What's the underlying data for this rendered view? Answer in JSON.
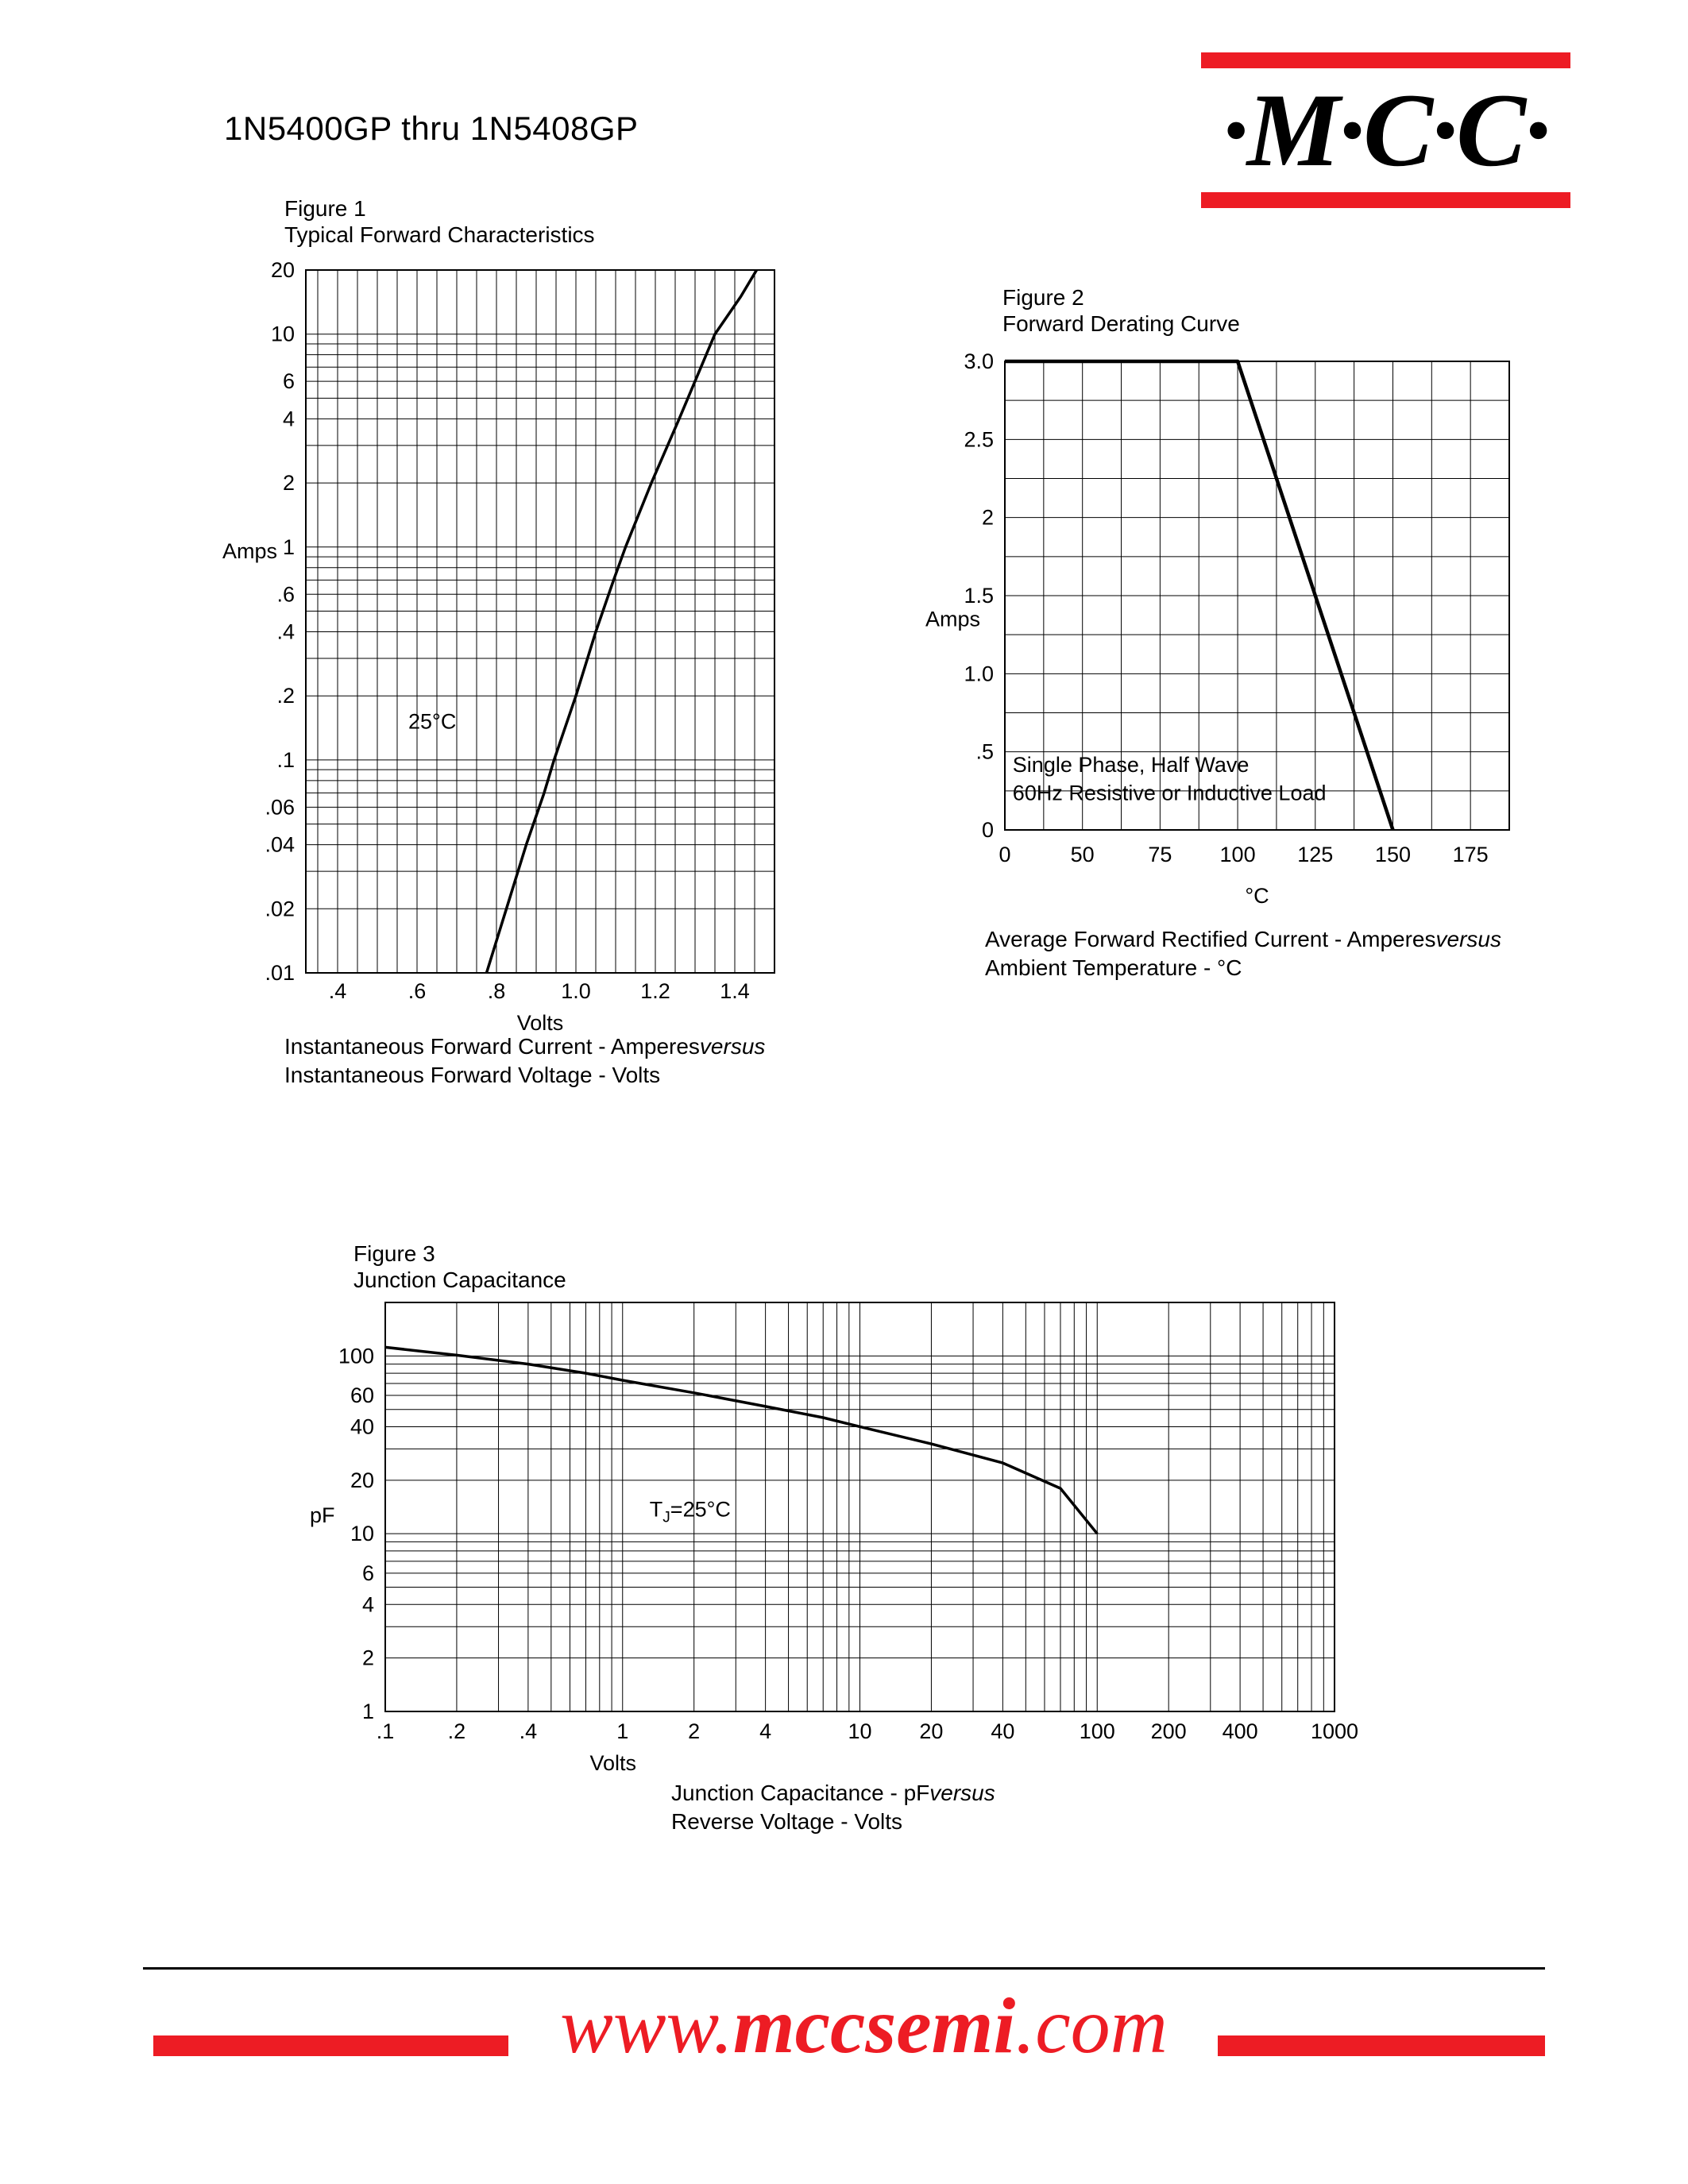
{
  "page": {
    "title": "1N5400GP thru 1N5408GP",
    "brand": {
      "logo_text": "·M·C·C·",
      "accent_color": "#ED1C24"
    },
    "footer": {
      "url_pre": "www.",
      "url_bold": "mccsemi",
      "url_post": ".com"
    }
  },
  "chart_data": [
    {
      "id": "fig1",
      "type": "line",
      "title": "Figure 1",
      "subtitle": "Typical Forward Characteristics",
      "xlabel": "Volts",
      "ylabel": "Amps",
      "x": {
        "scale": "linear",
        "min": 0.32,
        "max": 1.5,
        "grid": [
          0.35,
          0.4,
          0.45,
          0.5,
          0.55,
          0.6,
          0.65,
          0.7,
          0.75,
          0.8,
          0.85,
          0.9,
          0.95,
          1.0,
          1.05,
          1.1,
          1.15,
          1.2,
          1.25,
          1.3,
          1.35,
          1.4,
          1.45
        ],
        "ticks": [
          {
            "v": 0.4,
            "t": ".4"
          },
          {
            "v": 0.6,
            "t": ".6"
          },
          {
            "v": 0.8,
            "t": ".8"
          },
          {
            "v": 1.0,
            "t": "1.0"
          },
          {
            "v": 1.2,
            "t": "1.2"
          },
          {
            "v": 1.4,
            "t": "1.4"
          }
        ]
      },
      "y": {
        "scale": "log",
        "min": 0.01,
        "max": 20,
        "grid": [
          0.02,
          0.03,
          0.04,
          0.05,
          0.06,
          0.07,
          0.08,
          0.09,
          0.1,
          0.2,
          0.3,
          0.4,
          0.5,
          0.6,
          0.7,
          0.8,
          0.9,
          1,
          2,
          3,
          4,
          5,
          6,
          7,
          8,
          9,
          10
        ],
        "ticks": [
          {
            "v": 20,
            "t": "20"
          },
          {
            "v": 10,
            "t": "10"
          },
          {
            "v": 6,
            "t": "6"
          },
          {
            "v": 4,
            "t": "4"
          },
          {
            "v": 2,
            "t": "2"
          },
          {
            "v": 1,
            "t": "1"
          },
          {
            "v": 0.6,
            "t": ".6"
          },
          {
            "v": 0.4,
            "t": ".4"
          },
          {
            "v": 0.2,
            "t": ".2"
          },
          {
            "v": 0.1,
            "t": ".1"
          },
          {
            "v": 0.06,
            "t": ".06"
          },
          {
            "v": 0.04,
            "t": ".04"
          },
          {
            "v": 0.02,
            "t": ".02"
          },
          {
            "v": 0.01,
            "t": ".01"
          }
        ]
      },
      "series": [
        {
          "name": "typical forward characteristic",
          "points": [
            [
              0.775,
              0.01
            ],
            [
              0.825,
              0.02
            ],
            [
              0.875,
              0.04
            ],
            [
              0.92,
              0.07
            ],
            [
              0.945,
              0.1
            ],
            [
              1.0,
              0.2
            ],
            [
              1.05,
              0.4
            ],
            [
              1.095,
              0.7
            ],
            [
              1.125,
              1
            ],
            [
              1.19,
              2
            ],
            [
              1.26,
              4
            ],
            [
              1.315,
              7
            ],
            [
              1.35,
              10
            ],
            [
              1.415,
              15
            ],
            [
              1.455,
              20
            ]
          ]
        }
      ],
      "annotations": [
        {
          "x": 0.578,
          "y": 0.14,
          "text": "25°C"
        }
      ],
      "caption": {
        "line1": "Instantaneous Forward Current - Amperes",
        "line1_italic": "versus",
        "line2": "Instantaneous Forward Voltage - Volts"
      }
    },
    {
      "id": "fig2",
      "type": "line",
      "title": "Figure 2",
      "subtitle": "Forward Derating Curve",
      "xlabel": "°C",
      "ylabel": "Amps",
      "x": {
        "scale": "spread",
        "min": 0,
        "max": 187.5,
        "extend": 0.5,
        "grid": [
          25,
          50,
          62.5,
          75,
          87.5,
          100,
          112.5,
          125,
          137.5,
          150,
          162.5,
          175,
          187.5
        ],
        "ticks": [
          {
            "v": 0,
            "t": "0"
          },
          {
            "v": 50,
            "t": "50"
          },
          {
            "v": 75,
            "t": "75"
          },
          {
            "v": 100,
            "t": "100"
          },
          {
            "v": 125,
            "t": "125"
          },
          {
            "v": 150,
            "t": "150"
          },
          {
            "v": 175,
            "t": "175"
          }
        ]
      },
      "y": {
        "scale": "linear",
        "min": 0,
        "max": 3,
        "grid": [
          0.25,
          0.5,
          0.75,
          1,
          1.25,
          1.5,
          1.75,
          2,
          2.25,
          2.5,
          2.75
        ],
        "ticks": [
          {
            "v": 3,
            "t": "3.0"
          },
          {
            "v": 2.5,
            "t": "2.5"
          },
          {
            "v": 2,
            "t": "2"
          },
          {
            "v": 1.5,
            "t": "1.5"
          },
          {
            "v": 1,
            "t": "1.0"
          },
          {
            "v": 0.5,
            "t": ".5"
          },
          {
            "v": 0,
            "t": "0"
          }
        ]
      },
      "series": [
        {
          "name": "forward derating curve",
          "points": [
            [
              0,
              3
            ],
            [
              100,
              3
            ],
            [
              150,
              0
            ]
          ]
        }
      ],
      "annotations": [
        {
          "x": 5,
          "y": 0.37,
          "text": "Single Phase, Half Wave"
        },
        {
          "x": 5,
          "y": 0.19,
          "text": "60Hz Resistive or Inductive Load"
        }
      ],
      "caption": {
        "line1": "Average Forward Rectified Current  -  Amperes",
        "line1_italic": "versus",
        "line2": "Ambient Temperature  - °C"
      }
    },
    {
      "id": "fig3",
      "type": "line",
      "title": "Figure 3",
      "subtitle": "Junction Capacitance",
      "xlabel": "Volts",
      "ylabel": "pF",
      "x": {
        "scale": "log",
        "min": 0.1,
        "max": 1000,
        "grid": [
          0.2,
          0.3,
          0.4,
          0.5,
          0.6,
          0.7,
          0.8,
          0.9,
          1,
          2,
          3,
          4,
          5,
          6,
          7,
          8,
          9,
          10,
          20,
          30,
          40,
          50,
          60,
          70,
          80,
          90,
          100,
          200,
          300,
          400,
          500,
          600,
          700,
          800,
          900
        ],
        "ticks": [
          {
            "v": 0.1,
            "t": ".1"
          },
          {
            "v": 0.2,
            "t": ".2"
          },
          {
            "v": 0.4,
            "t": ".4"
          },
          {
            "v": 1,
            "t": "1"
          },
          {
            "v": 2,
            "t": "2"
          },
          {
            "v": 4,
            "t": "4"
          },
          {
            "v": 10,
            "t": "10"
          },
          {
            "v": 20,
            "t": "20"
          },
          {
            "v": 40,
            "t": "40"
          },
          {
            "v": 100,
            "t": "100"
          },
          {
            "v": 200,
            "t": "200"
          },
          {
            "v": 400,
            "t": "400"
          },
          {
            "v": 1000,
            "t": "1000"
          }
        ]
      },
      "y": {
        "scale": "log",
        "min": 1,
        "max": 200,
        "grid": [
          2,
          3,
          4,
          5,
          6,
          7,
          8,
          9,
          10,
          20,
          30,
          40,
          50,
          60,
          70,
          80,
          90,
          100
        ],
        "ticks": [
          {
            "v": 100,
            "t": "100"
          },
          {
            "v": 60,
            "t": "60"
          },
          {
            "v": 40,
            "t": "40"
          },
          {
            "v": 20,
            "t": "20"
          },
          {
            "v": 10,
            "t": "10"
          },
          {
            "v": 6,
            "t": "6"
          },
          {
            "v": 4,
            "t": "4"
          },
          {
            "v": 2,
            "t": "2"
          },
          {
            "v": 1,
            "t": "1"
          }
        ]
      },
      "series": [
        {
          "name": "junction capacitance",
          "points": [
            [
              0.1,
              112
            ],
            [
              0.2,
              101
            ],
            [
              0.4,
              90
            ],
            [
              0.7,
              80
            ],
            [
              1,
              73
            ],
            [
              2,
              62
            ],
            [
              4,
              52
            ],
            [
              7,
              45
            ],
            [
              10,
              40
            ],
            [
              20,
              32
            ],
            [
              40,
              25
            ],
            [
              70,
              18
            ],
            [
              100,
              10
            ]
          ]
        }
      ],
      "annotations": [
        {
          "x": 1.3,
          "y": 12.5,
          "pre": "T",
          "sub": "J",
          "post": "=25°C"
        }
      ],
      "caption": {
        "line1": "Junction Capacitance - pF",
        "line1_italic": "versus",
        "line2": "Reverse Voltage - Volts"
      }
    }
  ]
}
